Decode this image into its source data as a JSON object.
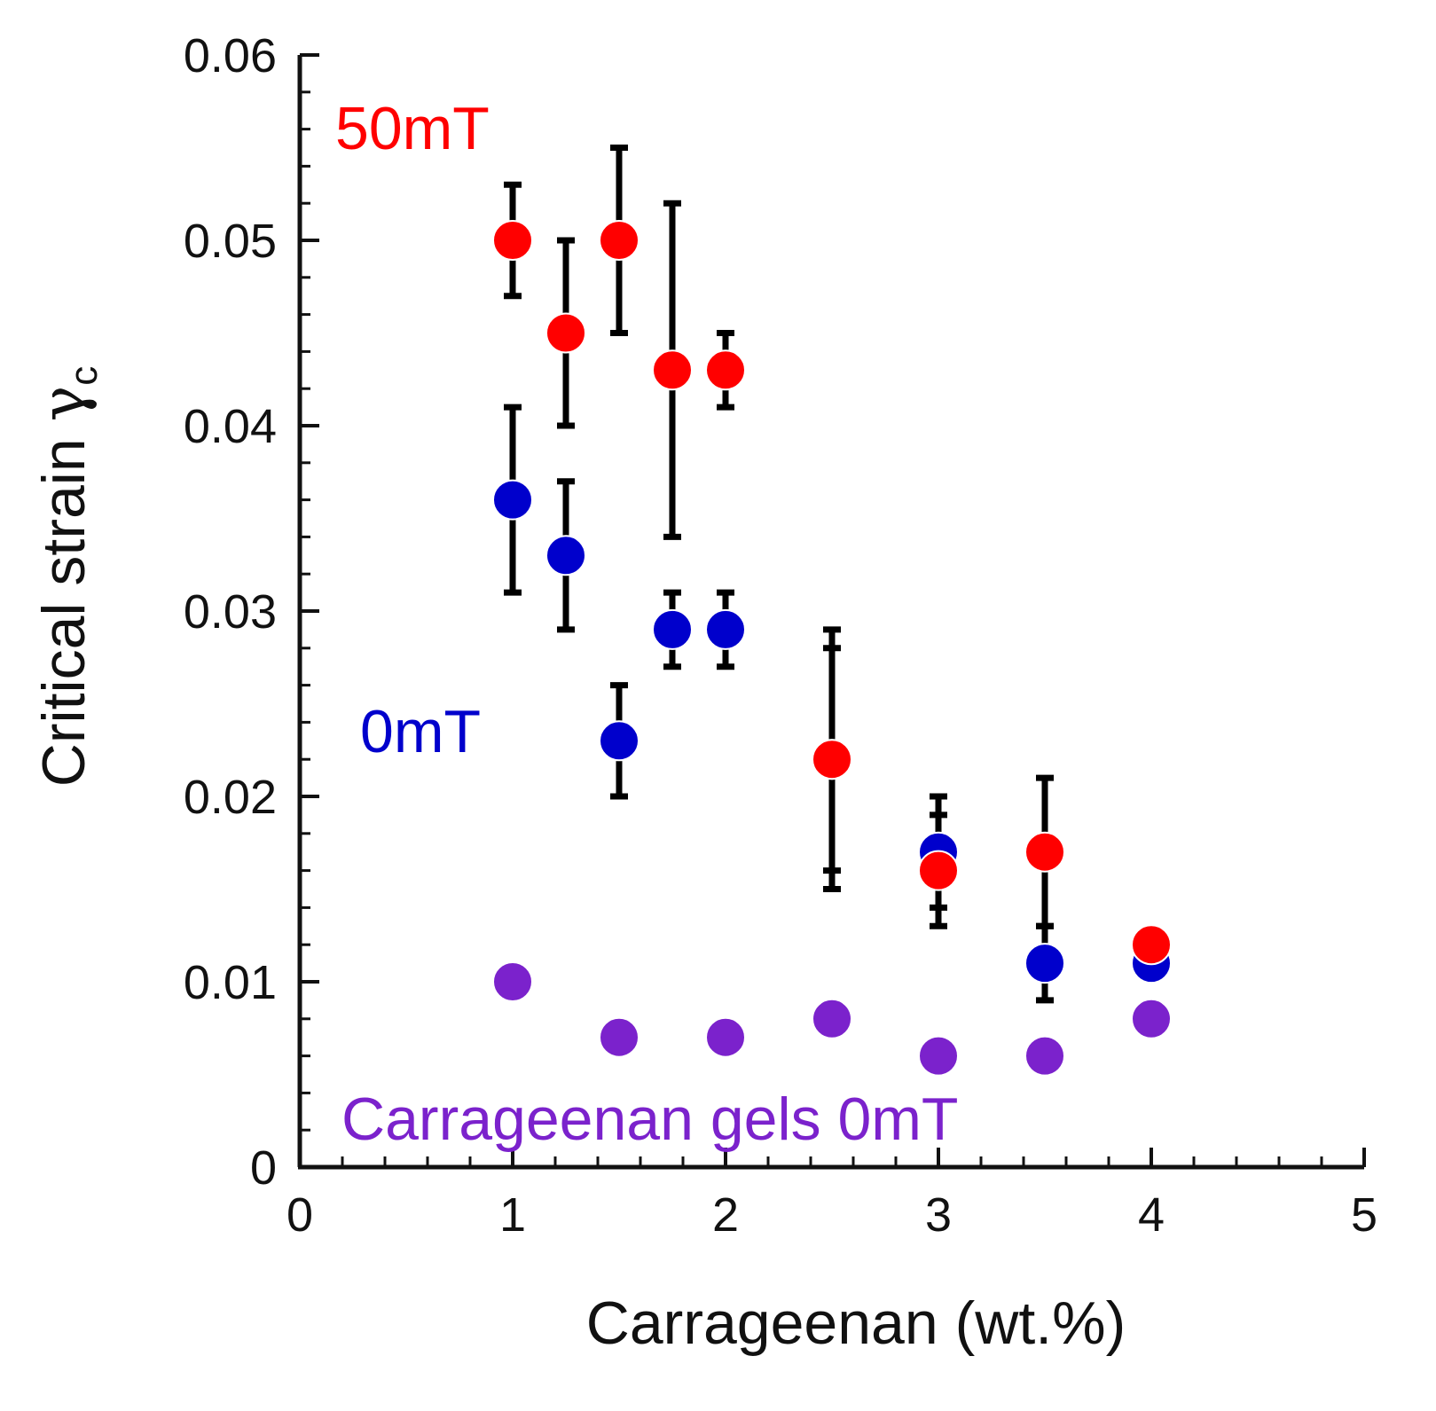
{
  "chart_data": {
    "type": "scatter",
    "title": "",
    "xlabel": "Carrageenan (wt.%)",
    "ylabel_main": "Critical strain ",
    "ylabel_symbol": "γ",
    "ylabel_subscript": "c",
    "xlim": [
      0,
      5
    ],
    "ylim": [
      0,
      0.06
    ],
    "x_ticks": [
      0,
      1,
      2,
      3,
      4,
      5
    ],
    "x_tick_labels": [
      "0",
      "1",
      "2",
      "3",
      "4",
      "5"
    ],
    "y_ticks": [
      0,
      0.01,
      0.02,
      0.03,
      0.04,
      0.05,
      0.06
    ],
    "y_tick_labels": [
      "0",
      "0.01",
      "0.02",
      "0.03",
      "0.04",
      "0.05",
      "0.06"
    ],
    "grid": false,
    "legend": "inline labels",
    "series": [
      {
        "name": "0mT",
        "color": "#0000cc",
        "points": [
          {
            "x": 1.0,
            "y": 0.036,
            "err_low": 0.031,
            "err_high": 0.041
          },
          {
            "x": 1.25,
            "y": 0.033,
            "err_low": 0.029,
            "err_high": 0.037
          },
          {
            "x": 1.5,
            "y": 0.023,
            "err_low": 0.02,
            "err_high": 0.026
          },
          {
            "x": 1.75,
            "y": 0.029,
            "err_low": 0.027,
            "err_high": 0.031
          },
          {
            "x": 2.0,
            "y": 0.029,
            "err_low": 0.027,
            "err_high": 0.031
          },
          {
            "x": 2.5,
            "y": 0.022,
            "err_low": 0.016,
            "err_high": 0.028
          },
          {
            "x": 3.0,
            "y": 0.017,
            "err_low": 0.014,
            "err_high": 0.02
          },
          {
            "x": 3.5,
            "y": 0.011,
            "err_low": 0.009,
            "err_high": 0.013
          },
          {
            "x": 4.0,
            "y": 0.011,
            "err_low": null,
            "err_high": null
          }
        ]
      },
      {
        "name": "50mT",
        "color": "#ff0000",
        "points": [
          {
            "x": 1.0,
            "y": 0.05,
            "err_low": 0.047,
            "err_high": 0.053
          },
          {
            "x": 1.25,
            "y": 0.045,
            "err_low": 0.04,
            "err_high": 0.05
          },
          {
            "x": 1.5,
            "y": 0.05,
            "err_low": 0.045,
            "err_high": 0.055
          },
          {
            "x": 1.75,
            "y": 0.043,
            "err_low": 0.034,
            "err_high": 0.052
          },
          {
            "x": 2.0,
            "y": 0.043,
            "err_low": 0.041,
            "err_high": 0.045
          },
          {
            "x": 2.5,
            "y": 0.022,
            "err_low": 0.015,
            "err_high": 0.029
          },
          {
            "x": 3.0,
            "y": 0.016,
            "err_low": 0.013,
            "err_high": 0.019
          },
          {
            "x": 3.5,
            "y": 0.017,
            "err_low": 0.013,
            "err_high": 0.021
          },
          {
            "x": 4.0,
            "y": 0.012,
            "err_low": null,
            "err_high": null
          }
        ]
      },
      {
        "name": "Carrageenan gels 0mT",
        "color": "#7b22cc",
        "points": [
          {
            "x": 1.0,
            "y": 0.01,
            "err_low": null,
            "err_high": null
          },
          {
            "x": 1.5,
            "y": 0.007,
            "err_low": null,
            "err_high": null
          },
          {
            "x": 2.0,
            "y": 0.007,
            "err_low": null,
            "err_high": null
          },
          {
            "x": 2.5,
            "y": 0.008,
            "err_low": null,
            "err_high": null
          },
          {
            "x": 3.0,
            "y": 0.006,
            "err_low": null,
            "err_high": null
          },
          {
            "x": 3.5,
            "y": 0.006,
            "err_low": null,
            "err_high": null
          },
          {
            "x": 4.0,
            "y": 0.008,
            "err_low": null,
            "err_high": null
          }
        ]
      }
    ],
    "annotations": [
      {
        "text": "50mT",
        "color": "#ff0000"
      },
      {
        "text": "0mT",
        "color": "#0000cc"
      },
      {
        "text": "Carrageenan gels 0mT",
        "color": "#7b22cc"
      }
    ]
  }
}
